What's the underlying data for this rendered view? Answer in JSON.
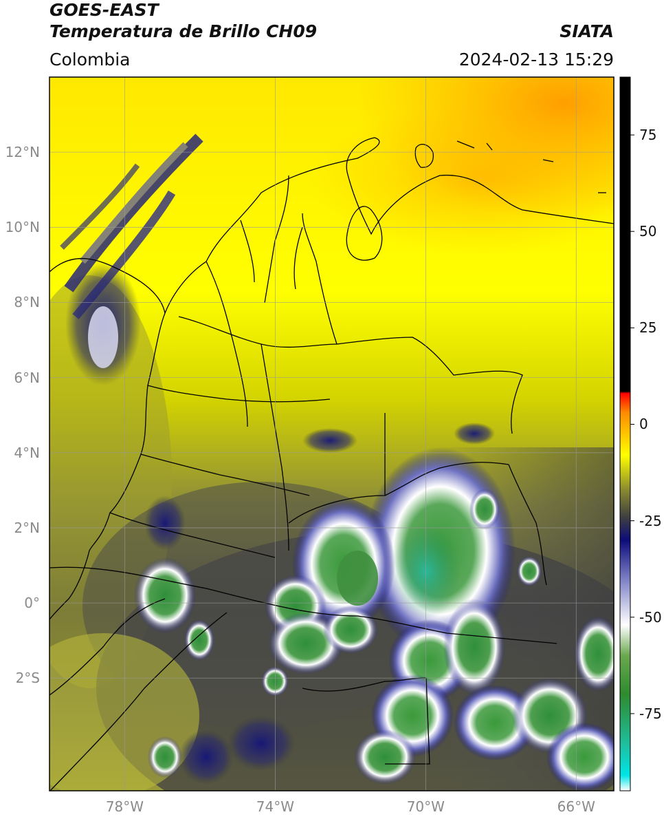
{
  "header": {
    "satellite": "GOES-EAST",
    "product": "Temperatura de Brillo CH09",
    "region": "Colombia",
    "agency": "SIATA",
    "datetime": "2024-02-13 15:29"
  },
  "map": {
    "lat_labels": [
      "12°N",
      "10°N",
      "8°N",
      "6°N",
      "4°N",
      "2°N",
      "0°",
      "2°S"
    ],
    "lat_values": [
      12,
      10,
      8,
      6,
      4,
      2,
      0,
      -2
    ],
    "lon_labels": [
      "78°W",
      "74°W",
      "70°W",
      "66°W"
    ],
    "lon_values": [
      -78,
      -74,
      -70,
      -66
    ],
    "extent": {
      "lon_min": -80,
      "lon_max": -65,
      "lat_min": -5,
      "lat_max": 14
    }
  },
  "colorbar": {
    "labels": [
      "75",
      "50",
      "25",
      "0",
      "-25",
      "-50",
      "-75"
    ],
    "values": [
      75,
      50,
      25,
      0,
      -25,
      -50,
      -75
    ],
    "range": [
      -95,
      90
    ],
    "stops": [
      {
        "v": -95,
        "color": "#ffffff"
      },
      {
        "v": -91,
        "color": "#00e5e5"
      },
      {
        "v": -83,
        "color": "#1fbf9f"
      },
      {
        "v": -70,
        "color": "#2e8b2e"
      },
      {
        "v": -60,
        "color": "#6aa84f"
      },
      {
        "v": -52,
        "color": "#ffffff"
      },
      {
        "v": -40,
        "color": "#7b7fc4"
      },
      {
        "v": -30,
        "color": "#0c0c7a"
      },
      {
        "v": -24,
        "color": "#404040"
      },
      {
        "v": -17,
        "color": "#8a8a30"
      },
      {
        "v": -8,
        "color": "#ffff00"
      },
      {
        "v": 3,
        "color": "#ff8c00"
      },
      {
        "v": 8,
        "color": "#ff0000"
      },
      {
        "v": 8.5,
        "color": "#000000"
      },
      {
        "v": 90,
        "color": "#000000"
      }
    ]
  }
}
